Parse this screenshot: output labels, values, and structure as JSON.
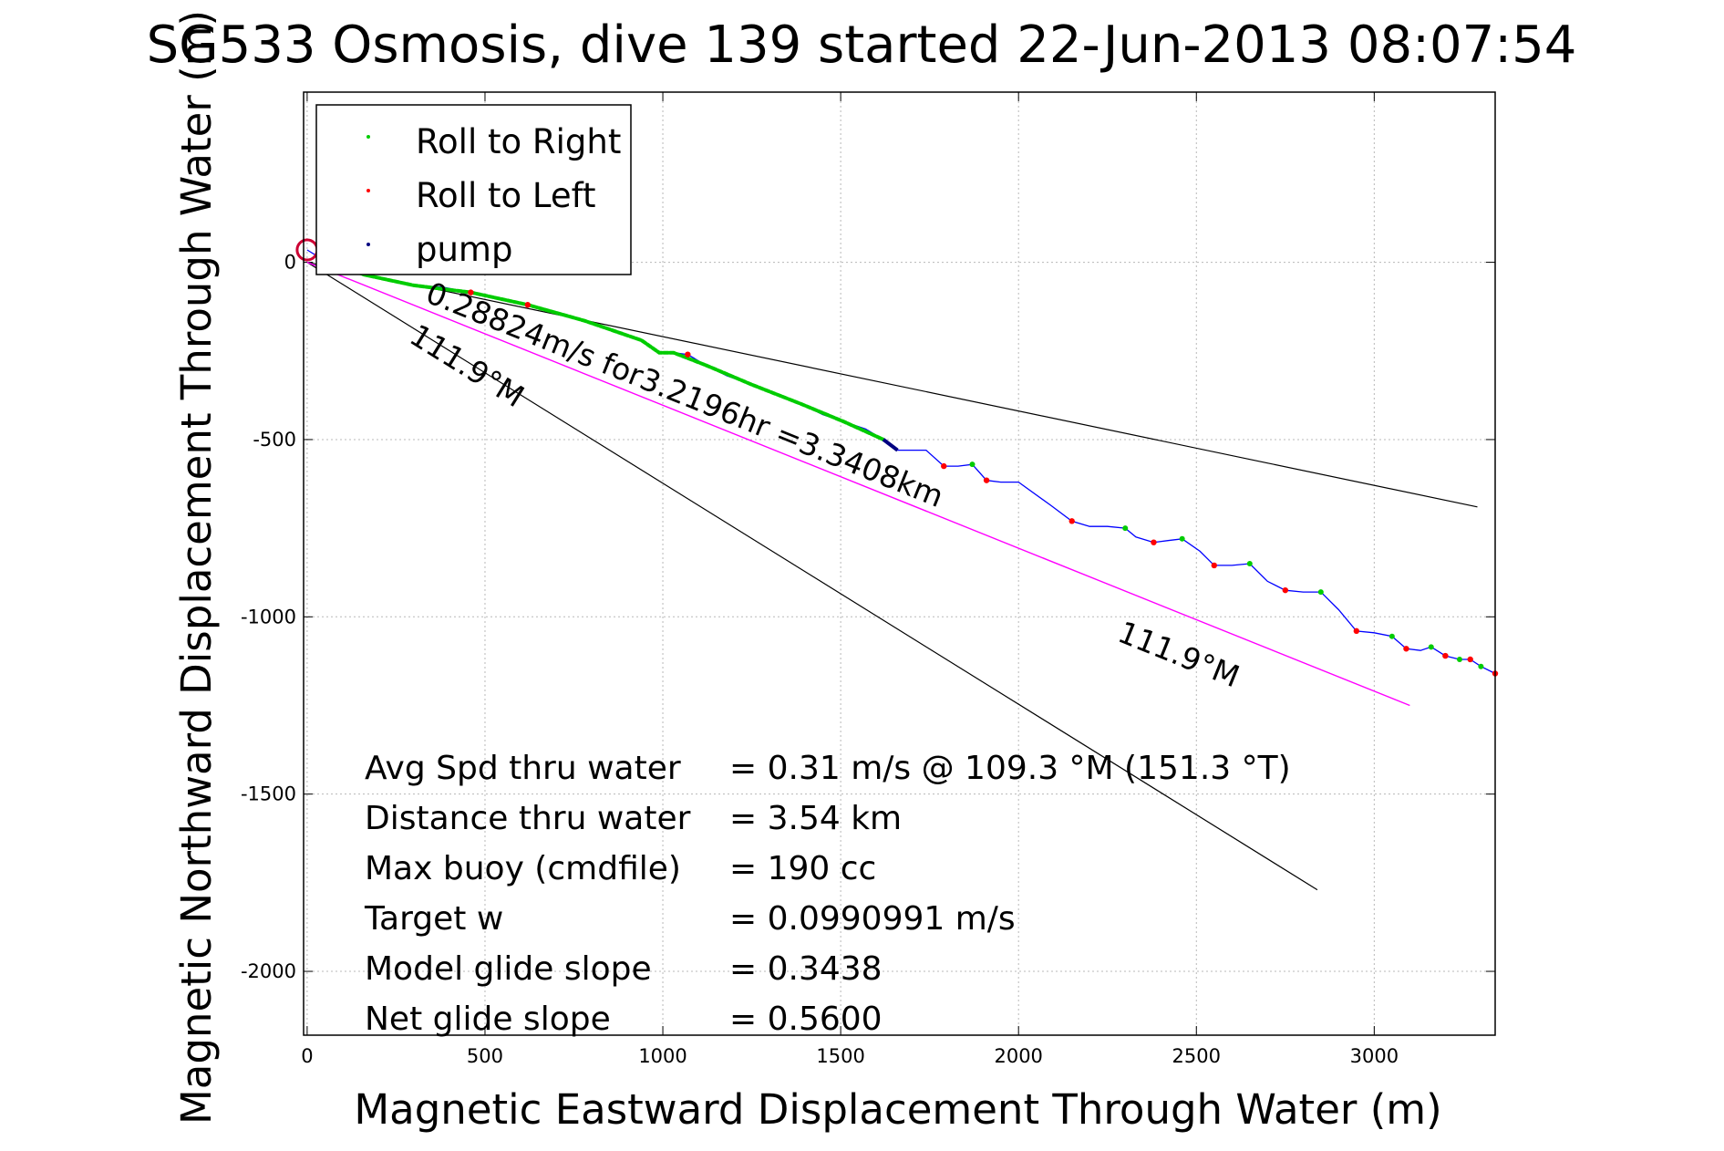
{
  "chart_data": {
    "type": "line",
    "title": "SG533 Osmosis, dive 139 started 22-Jun-2013 08:07:54",
    "xlabel": "Magnetic Eastward Displacement Through Water (m)",
    "ylabel": "Magnetic Northward Displacement Through Water (m)",
    "xlim": [
      -10,
      3340
    ],
    "ylim": [
      -2180,
      480
    ],
    "xticks": [
      0,
      500,
      1000,
      1500,
      2000,
      2500,
      3000
    ],
    "yticks": [
      0,
      -500,
      -1000,
      -1500,
      -2000
    ],
    "xtick_labels": [
      "0",
      "500",
      "1000",
      "1500",
      "2000",
      "2500",
      "3000"
    ],
    "ytick_labels": [
      "0",
      "-500",
      "-1000",
      "-1500",
      "-2000"
    ],
    "grid": true,
    "legend_position": "top-left",
    "legend": [
      {
        "label": "Roll to Right",
        "color": "#00cc00"
      },
      {
        "label": "Roll to Left",
        "color": "#ff0000"
      },
      {
        "label": "pump",
        "color": "#000080"
      }
    ],
    "colors": {
      "track": "#0000ff",
      "roll_right": "#00cc00",
      "roll_left": "#ff0000",
      "pump": "#000080",
      "mean_line": "#ff00ff",
      "cone_line": "#000000",
      "start_marker": "#cc0033"
    },
    "start_point": {
      "x": 0,
      "y": 35
    },
    "track": [
      [
        0,
        35
      ],
      [
        40,
        10
      ],
      [
        80,
        -5
      ],
      [
        120,
        -20
      ],
      [
        160,
        -35
      ],
      [
        220,
        -50
      ],
      [
        300,
        -65
      ],
      [
        380,
        -70
      ],
      [
        460,
        -85
      ],
      [
        540,
        -105
      ],
      [
        620,
        -120
      ],
      [
        700,
        -140
      ],
      [
        780,
        -165
      ],
      [
        860,
        -195
      ],
      [
        940,
        -220
      ],
      [
        990,
        -255
      ],
      [
        1030,
        -255
      ],
      [
        1070,
        -260
      ],
      [
        1120,
        -290
      ],
      [
        1180,
        -320
      ],
      [
        1250,
        -345
      ],
      [
        1320,
        -370
      ],
      [
        1390,
        -400
      ],
      [
        1450,
        -430
      ],
      [
        1510,
        -450
      ],
      [
        1570,
        -470
      ],
      [
        1620,
        -500
      ],
      [
        1660,
        -530
      ],
      [
        1700,
        -530
      ],
      [
        1740,
        -530
      ],
      [
        1790,
        -575
      ],
      [
        1830,
        -575
      ],
      [
        1870,
        -570
      ],
      [
        1910,
        -615
      ],
      [
        1950,
        -620
      ],
      [
        2000,
        -620
      ],
      [
        2090,
        -685
      ],
      [
        2150,
        -730
      ],
      [
        2200,
        -745
      ],
      [
        2250,
        -745
      ],
      [
        2300,
        -750
      ],
      [
        2330,
        -775
      ],
      [
        2380,
        -790
      ],
      [
        2420,
        -785
      ],
      [
        2460,
        -780
      ],
      [
        2510,
        -815
      ],
      [
        2550,
        -855
      ],
      [
        2600,
        -855
      ],
      [
        2650,
        -850
      ],
      [
        2700,
        -900
      ],
      [
        2750,
        -925
      ],
      [
        2800,
        -930
      ],
      [
        2850,
        -930
      ],
      [
        2900,
        -980
      ],
      [
        2950,
        -1040
      ],
      [
        3000,
        -1045
      ],
      [
        3050,
        -1055
      ],
      [
        3090,
        -1090
      ],
      [
        3130,
        -1095
      ],
      [
        3160,
        -1085
      ],
      [
        3200,
        -1110
      ],
      [
        3240,
        -1120
      ],
      [
        3270,
        -1120
      ],
      [
        3300,
        -1140
      ],
      [
        3340,
        -1160
      ]
    ],
    "roll_right_segments": [
      [
        [
          40,
          10
        ],
        [
          160,
          -35
        ],
        [
          300,
          -65
        ],
        [
          460,
          -85
        ],
        [
          620,
          -120
        ],
        [
          780,
          -165
        ],
        [
          940,
          -220
        ],
        [
          990,
          -255
        ],
        [
          1030,
          -255
        ],
        [
          1120,
          -290
        ],
        [
          1250,
          -345
        ],
        [
          1390,
          -400
        ],
        [
          1510,
          -450
        ],
        [
          1620,
          -500
        ]
      ]
    ],
    "roll_right_points": [
      [
        1870,
        -570
      ],
      [
        2300,
        -750
      ],
      [
        2460,
        -780
      ],
      [
        2650,
        -850
      ],
      [
        2850,
        -930
      ],
      [
        3050,
        -1055
      ],
      [
        3160,
        -1085
      ],
      [
        3240,
        -1120
      ],
      [
        3300,
        -1140
      ]
    ],
    "roll_left_points": [
      [
        460,
        -85
      ],
      [
        620,
        -120
      ],
      [
        1070,
        -260
      ],
      [
        1790,
        -575
      ],
      [
        1910,
        -615
      ],
      [
        2150,
        -730
      ],
      [
        2380,
        -790
      ],
      [
        2550,
        -855
      ],
      [
        2750,
        -925
      ],
      [
        2950,
        -1040
      ],
      [
        3090,
        -1090
      ],
      [
        3200,
        -1110
      ],
      [
        3270,
        -1120
      ],
      [
        3340,
        -1160
      ]
    ],
    "pump_segment": [
      [
        1620,
        -500
      ],
      [
        1660,
        -530
      ]
    ],
    "mean_course_line": {
      "from": [
        0,
        0
      ],
      "to": [
        3100,
        -1250
      ],
      "label": "0.28824m/s for3.2196hr =3.3408km",
      "heading_label": "111.9°M"
    },
    "cone_lines": [
      {
        "from": [
          0,
          0
        ],
        "to": [
          3290,
          -690
        ]
      },
      {
        "from": [
          0,
          0
        ],
        "to": [
          2840,
          -1770
        ],
        "label": "111.9°M"
      }
    ],
    "stats": [
      {
        "label": "Avg Spd thru water",
        "value": "=  0.31 m/s @ 109.3 °M (151.3 °T)"
      },
      {
        "label": "Distance thru water",
        "value": "=  3.54 km"
      },
      {
        "label": "Max buoy (cmdfile)",
        "value": "= 190 cc"
      },
      {
        "label": "Target w",
        "value": "= 0.0990991 m/s"
      },
      {
        "label": "Model glide slope",
        "value": "= 0.3438"
      },
      {
        "label": "Net glide slope",
        "value": "= 0.5600"
      }
    ]
  }
}
